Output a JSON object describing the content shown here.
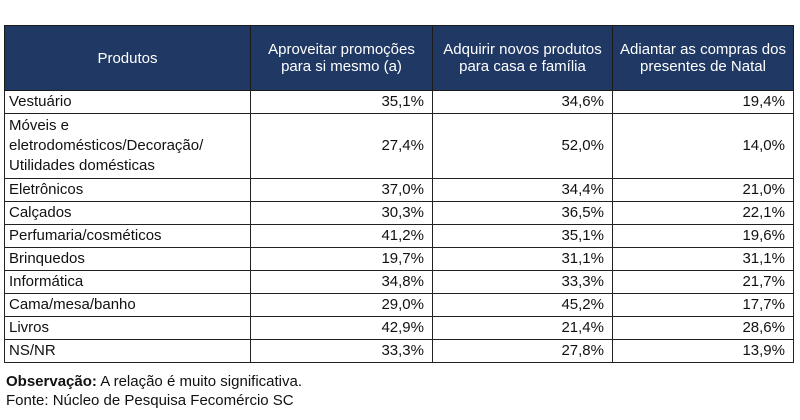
{
  "table": {
    "headers": [
      "Produtos",
      "Aproveitar promoções para si mesmo (a)",
      "Adquirir novos produtos para casa e família",
      "Adiantar as compras dos presentes de Natal"
    ],
    "rows": [
      {
        "product": "Vestuário",
        "v1": "35,1%",
        "v2": "34,6%",
        "v3": "19,4%"
      },
      {
        "product": "Móveis e eletrodomésticos/Decoração/ Utilidades domésticas",
        "v1": "27,4%",
        "v2": "52,0%",
        "v3": "14,0%"
      },
      {
        "product": "Eletrônicos",
        "v1": "37,0%",
        "v2": "34,4%",
        "v3": "21,0%"
      },
      {
        "product": "Calçados",
        "v1": "30,3%",
        "v2": "36,5%",
        "v3": "22,1%"
      },
      {
        "product": "Perfumaria/cosméticos",
        "v1": "41,2%",
        "v2": "35,1%",
        "v3": "19,6%"
      },
      {
        "product": "Brinquedos",
        "v1": "19,7%",
        "v2": "31,1%",
        "v3": "31,1%"
      },
      {
        "product": "Informática",
        "v1": "34,8%",
        "v2": "33,3%",
        "v3": "21,7%"
      },
      {
        "product": "Cama/mesa/banho",
        "v1": "29,0%",
        "v2": "45,2%",
        "v3": "17,7%"
      },
      {
        "product": "Livros",
        "v1": "42,9%",
        "v2": "21,4%",
        "v3": "28,6%"
      },
      {
        "product": "NS/NR",
        "v1": "33,3%",
        "v2": "27,8%",
        "v3": "13,9%"
      }
    ]
  },
  "notes": {
    "observation_label": "Observação:",
    "observation_text": " A relação é muito significativa.",
    "source": "Fonte: Núcleo de Pesquisa Fecomércio SC"
  }
}
